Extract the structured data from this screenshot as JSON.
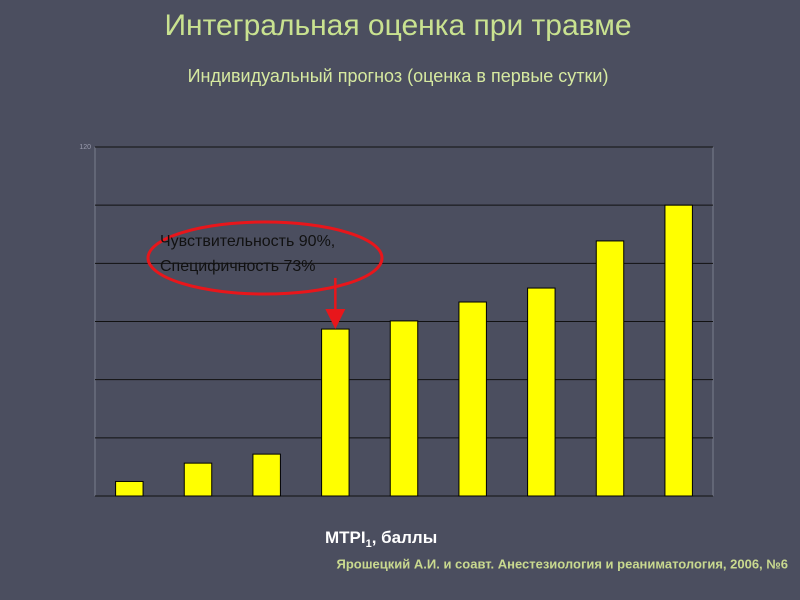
{
  "chart_data": {
    "type": "bar",
    "title": "Интегральная оценка при травме",
    "subtitle": "Индивидуальный прогноз (оценка в первые сутки)",
    "categories": [
      null,
      null,
      null,
      null,
      null,
      null,
      null,
      null,
      null
    ],
    "values": [
      5,
      11.3,
      14.4,
      57.4,
      60.2,
      66.7,
      71.5,
      87.7,
      100
    ],
    "color": "#ffff00",
    "ylim": [
      0,
      120
    ],
    "yticks": [
      {
        "value": 0,
        "label": null
      },
      {
        "value": 20,
        "label": null
      },
      {
        "value": 40,
        "label": null
      },
      {
        "value": 60,
        "label": null
      },
      {
        "value": 80,
        "label": null
      },
      {
        "value": 100,
        "label": null
      },
      120
    ],
    "grid": true,
    "x_label": {
      "main": "MTPI",
      "sub": "1",
      "rest": ", баллы"
    },
    "annotation": {
      "lines": [
        "Чувствительность 90%,",
        "Специфичность 73%"
      ],
      "target_index": 3,
      "color": "#e8161b"
    },
    "source": "Ярошецкий А.И.  и соавт.  Анестезиология и реаниматология, 2006, №6"
  }
}
